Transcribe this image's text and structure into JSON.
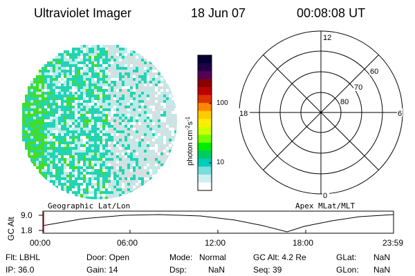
{
  "header": {
    "title": "Ultraviolet Imager",
    "date": "18 Jun 07",
    "time": "00:08:08 UT"
  },
  "colorbar": {
    "unit_label": "photon cm",
    "unit_exp1": "-2",
    "unit_mid": "s",
    "unit_exp2": "-1",
    "ticks": [
      "100",
      "10"
    ],
    "colors": [
      "#000033",
      "#220044",
      "#550055",
      "#880000",
      "#bb0000",
      "#dd3300",
      "#ff8800",
      "#ffcc00",
      "#ffee00",
      "#ccff00",
      "#77ff00",
      "#00ee00",
      "#00cc66",
      "#00ccbb",
      "#77dddd",
      "#ccf0f0",
      "#ffffff"
    ]
  },
  "polar_plot": {
    "labels": {
      "top": "12",
      "left": "18",
      "right": "6",
      "bottom": "0"
    },
    "lat_labels": [
      "60",
      "70",
      "80"
    ]
  },
  "timeline": {
    "ylabel": "GC Alt",
    "yticks": [
      "9.0",
      "1.8"
    ],
    "left_label": "Geographic Lat/Lon",
    "right_label": "Apex MLat/MLT",
    "xticks": [
      "00:00",
      "06:00",
      "12:00",
      "18:00",
      "23:59"
    ]
  },
  "info": {
    "flt": "Flt: LBHL",
    "ip": "IP: 36.0",
    "door": "Door: Open",
    "gain": "Gain: 14",
    "mode_label": "Mode:",
    "mode_value": "Normal",
    "dsp_label": "Dsp:",
    "dsp_value": "NaN",
    "gcalt": "GC Alt: 4.2 Re",
    "seq": "Seq: 39",
    "glat_label": "GLat:",
    "glat_value": "NaN",
    "glon_label": "GLon:",
    "glon_value": "NaN"
  },
  "image_colors": {
    "green": "#44dd22",
    "cyan": "#22d4b4",
    "light": "#bfeaea",
    "pale": "#dcdcdc"
  }
}
